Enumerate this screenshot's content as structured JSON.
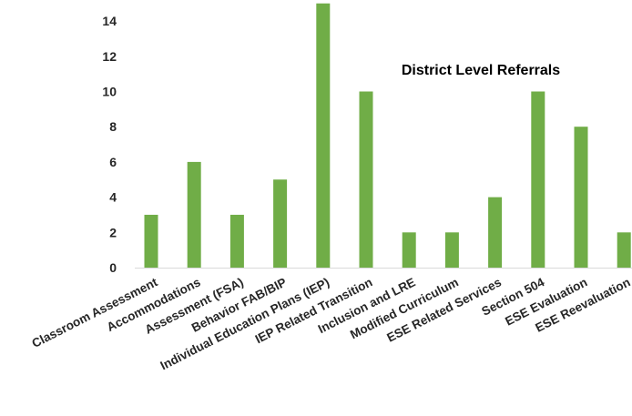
{
  "chart_data": {
    "type": "bar",
    "title": "District Level Referrals",
    "xlabel": "",
    "ylabel": "",
    "categories": [
      "Classroom Assessment",
      "Accommodations",
      "Assessment (FSA)",
      "Behavior FAB/BIP",
      "Individual Education Plans (IEP)",
      "IEP Related Transition",
      "Inclusion and LRE",
      "Modified Curriculum",
      "ESE Related Services",
      "Section 504",
      "ESE Evaluation",
      "ESE Reevaluation"
    ],
    "values": [
      3,
      6,
      3,
      5,
      15,
      10,
      2,
      2,
      4,
      10,
      8,
      2
    ],
    "ylim": [
      0,
      15
    ],
    "yticks": [
      0,
      2,
      4,
      6,
      8,
      10,
      12,
      14
    ],
    "grid": false,
    "legend": "none",
    "bar_color": "#70ad47"
  }
}
